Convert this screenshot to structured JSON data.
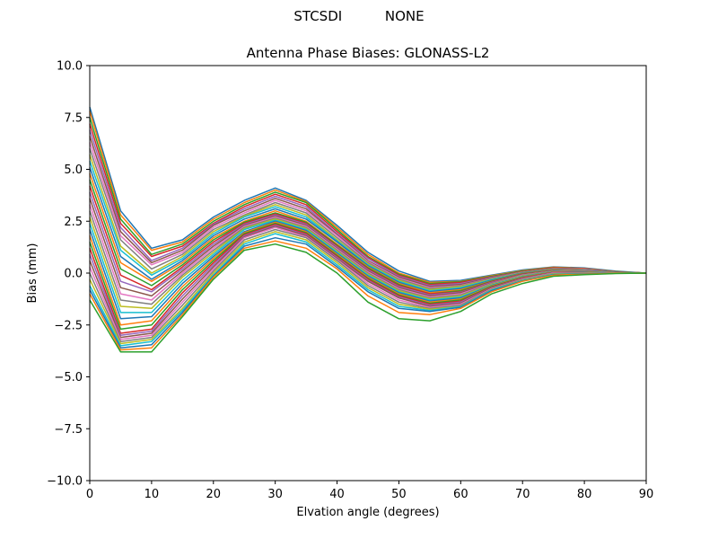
{
  "figure": {
    "suptitle": "STCSDI          NONE"
  },
  "chart_data": {
    "type": "line",
    "title": "Antenna Phase Biases: GLONASS-L2",
    "xlabel": "Elvation angle (degrees)",
    "ylabel": "Bias (mm)",
    "xlim": [
      0,
      90
    ],
    "ylim": [
      -10,
      10
    ],
    "xticks": [
      0,
      10,
      20,
      30,
      40,
      50,
      60,
      70,
      80,
      90
    ],
    "yticks": [
      -10.0,
      -7.5,
      -5.0,
      -2.5,
      0.0,
      2.5,
      5.0,
      7.5,
      10.0
    ],
    "ytick_labels": [
      "−10.0",
      "−7.5",
      "−5.0",
      "−2.5",
      "0.0",
      "2.5",
      "5.0",
      "7.5",
      "10.0"
    ],
    "grid": false,
    "x": [
      0,
      5,
      10,
      15,
      20,
      25,
      30,
      35,
      40,
      45,
      50,
      55,
      60,
      65,
      70,
      75,
      80,
      85,
      90
    ],
    "colors": [
      "#1f77b4",
      "#ff7f0e",
      "#2ca02c",
      "#d62728",
      "#9467bd",
      "#8c564b",
      "#e377c2",
      "#7f7f7f",
      "#bcbd22",
      "#17becf"
    ],
    "series": [
      {
        "values": [
          8.0,
          3.0,
          1.2,
          1.6,
          2.7,
          3.5,
          4.1,
          3.5,
          2.3,
          1.0,
          0.1,
          -0.4,
          -0.35,
          -0.1,
          0.15,
          0.3,
          0.25,
          0.1,
          0.0
        ]
      },
      {
        "values": [
          7.8,
          2.8,
          1.1,
          1.5,
          2.6,
          3.4,
          4.0,
          3.45,
          2.2,
          0.9,
          0.0,
          -0.45,
          -0.4,
          -0.12,
          0.12,
          0.28,
          0.22,
          0.08,
          0.0
        ]
      },
      {
        "values": [
          7.5,
          2.6,
          0.9,
          1.4,
          2.5,
          3.3,
          3.9,
          3.4,
          2.1,
          0.8,
          -0.05,
          -0.5,
          -0.42,
          -0.15,
          0.1,
          0.26,
          0.2,
          0.07,
          0.0
        ]
      },
      {
        "values": [
          7.2,
          2.4,
          0.8,
          1.3,
          2.4,
          3.2,
          3.8,
          3.3,
          2.0,
          0.75,
          -0.1,
          -0.55,
          -0.45,
          -0.18,
          0.08,
          0.25,
          0.2,
          0.06,
          0.0
        ]
      },
      {
        "values": [
          6.9,
          2.2,
          0.6,
          1.2,
          2.35,
          3.1,
          3.7,
          3.2,
          1.9,
          0.7,
          -0.15,
          -0.6,
          -0.5,
          -0.2,
          0.06,
          0.23,
          0.18,
          0.05,
          0.0
        ]
      },
      {
        "values": [
          6.6,
          2.0,
          0.5,
          1.1,
          2.3,
          3.0,
          3.6,
          3.1,
          1.85,
          0.6,
          -0.2,
          -0.65,
          -0.55,
          -0.22,
          0.05,
          0.22,
          0.17,
          0.05,
          0.0
        ]
      },
      {
        "values": [
          6.3,
          1.8,
          0.4,
          1.0,
          2.2,
          2.9,
          3.5,
          3.0,
          1.8,
          0.55,
          -0.25,
          -0.7,
          -0.6,
          -0.25,
          0.04,
          0.2,
          0.16,
          0.04,
          0.0
        ]
      },
      {
        "values": [
          6.0,
          1.6,
          0.2,
          0.9,
          2.1,
          2.8,
          3.4,
          2.9,
          1.7,
          0.5,
          -0.3,
          -0.75,
          -0.62,
          -0.27,
          0.03,
          0.19,
          0.15,
          0.04,
          0.0
        ]
      },
      {
        "values": [
          5.7,
          1.3,
          0.0,
          0.8,
          2.0,
          2.75,
          3.3,
          2.8,
          1.6,
          0.45,
          -0.35,
          -0.8,
          -0.65,
          -0.3,
          0.02,
          0.18,
          0.14,
          0.03,
          0.0
        ]
      },
      {
        "values": [
          5.4,
          1.1,
          -0.1,
          0.7,
          1.9,
          2.7,
          3.2,
          2.7,
          1.55,
          0.4,
          -0.4,
          -0.85,
          -0.7,
          -0.32,
          0.01,
          0.17,
          0.13,
          0.03,
          0.0
        ]
      },
      {
        "values": [
          5.1,
          0.8,
          -0.3,
          0.6,
          1.8,
          2.6,
          3.1,
          2.6,
          1.5,
          0.35,
          -0.45,
          -0.9,
          -0.75,
          -0.35,
          0.0,
          0.16,
          0.12,
          0.03,
          0.0
        ]
      },
      {
        "values": [
          4.8,
          0.5,
          -0.4,
          0.5,
          1.7,
          2.5,
          3.0,
          2.5,
          1.4,
          0.3,
          -0.5,
          -0.95,
          -0.8,
          -0.38,
          -0.02,
          0.15,
          0.11,
          0.02,
          0.0
        ]
      },
      {
        "values": [
          4.5,
          0.2,
          -0.6,
          0.4,
          1.6,
          2.45,
          2.9,
          2.45,
          1.35,
          0.25,
          -0.55,
          -1.0,
          -0.85,
          -0.4,
          -0.04,
          0.14,
          0.1,
          0.02,
          0.0
        ]
      },
      {
        "values": [
          4.2,
          -0.1,
          -0.8,
          0.3,
          1.5,
          2.4,
          2.85,
          2.4,
          1.3,
          0.2,
          -0.6,
          -1.0,
          -0.9,
          -0.42,
          -0.05,
          0.13,
          0.1,
          0.02,
          0.0
        ]
      },
      {
        "values": [
          3.9,
          -0.4,
          -0.9,
          0.2,
          1.4,
          2.35,
          2.8,
          2.35,
          1.25,
          0.15,
          -0.65,
          -1.05,
          -0.92,
          -0.45,
          -0.07,
          0.12,
          0.09,
          0.02,
          0.0
        ]
      },
      {
        "values": [
          3.6,
          -0.7,
          -1.1,
          0.1,
          1.3,
          2.3,
          2.75,
          2.3,
          1.2,
          0.1,
          -0.7,
          -1.1,
          -0.95,
          -0.48,
          -0.08,
          0.11,
          0.08,
          0.01,
          0.0
        ]
      },
      {
        "values": [
          3.3,
          -1.0,
          -1.3,
          0.0,
          1.2,
          2.25,
          2.7,
          2.25,
          1.15,
          0.05,
          -0.75,
          -1.15,
          -1.0,
          -0.5,
          -0.1,
          0.1,
          0.08,
          0.01,
          0.0
        ]
      },
      {
        "values": [
          3.0,
          -1.3,
          -1.5,
          -0.1,
          1.1,
          2.2,
          2.65,
          2.2,
          1.1,
          0.0,
          -0.8,
          -1.2,
          -1.05,
          -0.52,
          -0.12,
          0.09,
          0.07,
          0.01,
          0.0
        ]
      },
      {
        "values": [
          2.7,
          -1.6,
          -1.7,
          -0.2,
          1.0,
          2.15,
          2.6,
          2.15,
          1.05,
          -0.05,
          -0.85,
          -1.25,
          -1.1,
          -0.55,
          -0.14,
          0.08,
          0.06,
          0.01,
          0.0
        ]
      },
      {
        "values": [
          2.4,
          -1.9,
          -1.9,
          -0.35,
          0.9,
          2.1,
          2.55,
          2.1,
          1.0,
          -0.1,
          -0.9,
          -1.3,
          -1.15,
          -0.58,
          -0.16,
          0.07,
          0.05,
          0.0,
          0.0
        ]
      },
      {
        "values": [
          2.1,
          -2.2,
          -2.1,
          -0.5,
          0.8,
          2.0,
          2.5,
          2.05,
          0.95,
          -0.15,
          -0.95,
          -1.35,
          -1.2,
          -0.6,
          -0.18,
          0.06,
          0.04,
          0.0,
          0.0
        ]
      },
      {
        "values": [
          1.8,
          -2.5,
          -2.3,
          -0.65,
          0.7,
          1.95,
          2.45,
          2.0,
          0.9,
          -0.2,
          -1.0,
          -1.4,
          -1.25,
          -0.62,
          -0.2,
          0.05,
          0.03,
          0.0,
          0.0
        ]
      },
      {
        "values": [
          1.5,
          -2.7,
          -2.5,
          -0.8,
          0.6,
          1.9,
          2.4,
          1.95,
          0.85,
          -0.25,
          -1.05,
          -1.45,
          -1.3,
          -0.65,
          -0.22,
          0.04,
          0.02,
          0.0,
          0.0
        ]
      },
      {
        "values": [
          1.2,
          -2.9,
          -2.7,
          -0.95,
          0.5,
          1.85,
          2.35,
          1.9,
          0.8,
          -0.3,
          -1.1,
          -1.5,
          -1.35,
          -0.68,
          -0.24,
          0.03,
          0.02,
          0.0,
          0.0
        ]
      },
      {
        "values": [
          0.9,
          -3.0,
          -2.8,
          -1.1,
          0.4,
          1.8,
          2.3,
          1.85,
          0.75,
          -0.35,
          -1.15,
          -1.55,
          -1.4,
          -0.7,
          -0.26,
          0.02,
          0.01,
          0.0,
          0.0
        ]
      },
      {
        "values": [
          0.6,
          -3.1,
          -2.9,
          -1.25,
          0.3,
          1.75,
          2.25,
          1.8,
          0.7,
          -0.4,
          -1.2,
          -1.6,
          -1.45,
          -0.72,
          -0.28,
          0.01,
          0.0,
          0.0,
          0.0
        ]
      },
      {
        "values": [
          0.3,
          -3.2,
          -3.0,
          -1.4,
          0.2,
          1.7,
          2.2,
          1.75,
          0.65,
          -0.5,
          -1.3,
          -1.65,
          -1.5,
          -0.75,
          -0.3,
          0.0,
          0.0,
          0.0,
          0.0
        ]
      },
      {
        "values": [
          0.0,
          -3.3,
          -3.1,
          -1.55,
          0.1,
          1.6,
          2.1,
          1.7,
          0.6,
          -0.6,
          -1.4,
          -1.7,
          -1.55,
          -0.78,
          -0.32,
          -0.02,
          -0.01,
          0.0,
          0.0
        ]
      },
      {
        "values": [
          -0.3,
          -3.4,
          -3.2,
          -1.7,
          0.0,
          1.5,
          2.0,
          1.6,
          0.5,
          -0.7,
          -1.5,
          -1.75,
          -1.6,
          -0.8,
          -0.34,
          -0.04,
          -0.02,
          0.0,
          0.0
        ]
      },
      {
        "values": [
          -0.6,
          -3.5,
          -3.3,
          -1.8,
          -0.1,
          1.4,
          1.9,
          1.5,
          0.4,
          -0.8,
          -1.6,
          -1.8,
          -1.62,
          -0.82,
          -0.36,
          -0.06,
          -0.03,
          -0.01,
          0.0
        ]
      },
      {
        "values": [
          -0.8,
          -3.6,
          -3.45,
          -1.9,
          -0.15,
          1.3,
          1.7,
          1.4,
          0.3,
          -0.9,
          -1.7,
          -1.85,
          -1.65,
          -0.85,
          -0.38,
          -0.08,
          -0.04,
          -0.01,
          0.0
        ]
      },
      {
        "values": [
          -1.0,
          -3.7,
          -3.6,
          -2.0,
          -0.2,
          1.2,
          1.55,
          1.2,
          0.2,
          -1.1,
          -1.9,
          -2.0,
          -1.7,
          -0.9,
          -0.4,
          -0.1,
          -0.05,
          -0.01,
          0.0
        ]
      },
      {
        "values": [
          -1.3,
          -3.8,
          -3.8,
          -2.1,
          -0.3,
          1.1,
          1.4,
          1.0,
          0.0,
          -1.4,
          -2.2,
          -2.3,
          -1.85,
          -1.0,
          -0.5,
          -0.15,
          -0.08,
          -0.02,
          0.0
        ]
      }
    ]
  }
}
